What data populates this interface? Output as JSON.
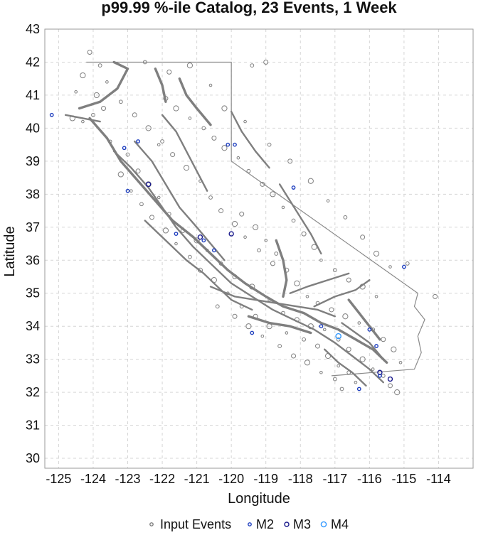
{
  "chart_data": {
    "type": "scatter",
    "title": "p99.99 %-ile Catalog, 23 Events, 1 Week",
    "xlabel": "Longitude",
    "ylabel": "Latitude",
    "xlim": [
      -125.4,
      -113.0
    ],
    "ylim": [
      29.7,
      43.0
    ],
    "x_ticks": [
      -125,
      -124,
      -123,
      -122,
      -121,
      -120,
      -119,
      -118,
      -117,
      -116,
      -115,
      -114
    ],
    "y_ticks": [
      30,
      31,
      32,
      33,
      34,
      35,
      36,
      37,
      38,
      39,
      40,
      41,
      42,
      43
    ],
    "grid": true,
    "legend_position": "bottom",
    "legend": [
      {
        "label": "Input Events",
        "color": "#7f7f7f"
      },
      {
        "label": "M2",
        "color": "#1f3fbf"
      },
      {
        "label": "M3",
        "color": "#1a1a8c"
      },
      {
        "label": "M4",
        "color": "#3399ff"
      }
    ],
    "boundary": [
      [
        -124.2,
        42.0
      ],
      [
        -120.0,
        42.0
      ],
      [
        -120.0,
        39.0
      ],
      [
        -114.6,
        35.0
      ],
      [
        -114.7,
        34.6
      ],
      [
        -114.4,
        34.2
      ],
      [
        -114.6,
        33.7
      ],
      [
        -114.5,
        33.2
      ],
      [
        -114.7,
        32.7
      ],
      [
        -117.1,
        32.5
      ]
    ],
    "faults": [
      [
        [
          -124.1,
          40.3
        ],
        [
          -123.6,
          39.7
        ],
        [
          -123.2,
          39.0
        ],
        [
          -122.7,
          38.4
        ],
        [
          -122.2,
          37.8
        ],
        [
          -121.7,
          37.2
        ],
        [
          -121.1,
          36.7
        ],
        [
          -120.6,
          36.2
        ],
        [
          -120.1,
          35.7
        ],
        [
          -119.6,
          35.3
        ],
        [
          -119.0,
          34.9
        ],
        [
          -118.5,
          34.6
        ],
        [
          -117.9,
          34.4
        ],
        [
          -117.4,
          34.1
        ],
        [
          -116.9,
          33.9
        ],
        [
          -116.4,
          33.6
        ],
        [
          -115.9,
          33.3
        ],
        [
          -115.5,
          32.9
        ]
      ],
      [
        [
          -123.4,
          39.3
        ],
        [
          -122.9,
          38.8
        ],
        [
          -122.4,
          38.2
        ],
        [
          -122.0,
          37.6
        ],
        [
          -121.6,
          37.0
        ],
        [
          -121.1,
          36.4
        ],
        [
          -120.5,
          35.8
        ],
        [
          -120.0,
          35.3
        ],
        [
          -119.4,
          34.9
        ],
        [
          -118.8,
          34.5
        ],
        [
          -118.2,
          34.2
        ],
        [
          -117.6,
          33.9
        ],
        [
          -117.0,
          33.5
        ],
        [
          -116.5,
          33.1
        ],
        [
          -116.0,
          32.7
        ],
        [
          -115.6,
          32.3
        ]
      ],
      [
        [
          -122.8,
          39.6
        ],
        [
          -122.3,
          39.0
        ],
        [
          -121.9,
          38.3
        ],
        [
          -121.5,
          37.6
        ],
        [
          -121.0,
          37.0
        ],
        [
          -120.6,
          36.5
        ],
        [
          -120.2,
          36.0
        ]
      ],
      [
        [
          -124.4,
          40.6
        ],
        [
          -123.8,
          40.8
        ],
        [
          -123.3,
          41.2
        ],
        [
          -123.0,
          41.8
        ],
        [
          -123.4,
          42.0
        ]
      ],
      [
        [
          -122.5,
          37.2
        ],
        [
          -122.1,
          36.8
        ],
        [
          -121.7,
          36.4
        ],
        [
          -121.3,
          36.0
        ],
        [
          -120.8,
          35.6
        ],
        [
          -120.4,
          35.2
        ],
        [
          -120.0,
          34.8
        ],
        [
          -119.4,
          34.5
        ]
      ],
      [
        [
          -120.6,
          35.2
        ],
        [
          -119.9,
          34.9
        ],
        [
          -119.3,
          34.8
        ],
        [
          -118.7,
          34.7
        ],
        [
          -118.1,
          34.6
        ],
        [
          -117.5,
          34.5
        ],
        [
          -117.0,
          34.3
        ]
      ],
      [
        [
          -118.7,
          36.6
        ],
        [
          -118.5,
          36.0
        ],
        [
          -118.4,
          35.4
        ],
        [
          -118.5,
          34.9
        ]
      ],
      [
        [
          -118.3,
          35.0
        ],
        [
          -117.8,
          35.2
        ],
        [
          -117.2,
          35.4
        ],
        [
          -116.6,
          35.6
        ]
      ],
      [
        [
          -117.6,
          34.6
        ],
        [
          -117.0,
          34.9
        ],
        [
          -116.4,
          35.1
        ],
        [
          -116.0,
          35.4
        ]
      ],
      [
        [
          -116.6,
          34.8
        ],
        [
          -116.3,
          34.4
        ],
        [
          -116.0,
          34.0
        ],
        [
          -115.7,
          33.6
        ]
      ],
      [
        [
          -118.6,
          38.3
        ],
        [
          -118.3,
          37.8
        ],
        [
          -118.0,
          37.3
        ],
        [
          -117.7,
          36.8
        ],
        [
          -117.4,
          36.2
        ]
      ],
      [
        [
          -120.0,
          40.5
        ],
        [
          -119.7,
          39.9
        ],
        [
          -119.3,
          39.3
        ],
        [
          -118.9,
          38.8
        ]
      ],
      [
        [
          -121.5,
          41.5
        ],
        [
          -121.3,
          41.0
        ],
        [
          -121.0,
          40.6
        ],
        [
          -120.6,
          40.1
        ]
      ],
      [
        [
          -122.0,
          40.4
        ],
        [
          -121.6,
          39.9
        ],
        [
          -121.3,
          39.3
        ],
        [
          -121.0,
          38.7
        ],
        [
          -120.7,
          38.1
        ]
      ],
      [
        [
          -117.3,
          33.3
        ],
        [
          -116.9,
          32.9
        ],
        [
          -116.5,
          32.6
        ],
        [
          -116.1,
          32.2
        ]
      ],
      [
        [
          -119.5,
          34.3
        ],
        [
          -118.9,
          34.1
        ],
        [
          -118.3,
          34.0
        ],
        [
          -117.7,
          33.8
        ]
      ],
      [
        [
          -116.8,
          34.1
        ],
        [
          -116.4,
          33.8
        ],
        [
          -116.0,
          33.5
        ],
        [
          -115.6,
          33.0
        ]
      ],
      [
        [
          -124.8,
          40.4
        ],
        [
          -124.3,
          40.3
        ],
        [
          -123.8,
          40.2
        ]
      ],
      [
        [
          -122.2,
          41.8
        ],
        [
          -122.0,
          41.3
        ],
        [
          -121.9,
          40.8
        ]
      ]
    ],
    "events": [
      [
        -124.3,
        40.2
      ],
      [
        -124.0,
        40.4
      ],
      [
        -123.7,
        40.6
      ],
      [
        -124.6,
        40.3
      ],
      [
        -123.5,
        39.6
      ],
      [
        -123.0,
        39.2
      ],
      [
        -122.7,
        38.7
      ],
      [
        -122.4,
        38.3
      ],
      [
        -122.1,
        37.9
      ],
      [
        -121.8,
        37.4
      ],
      [
        -121.4,
        36.9
      ],
      [
        -121.0,
        36.6
      ],
      [
        -120.7,
        36.3
      ],
      [
        -120.3,
        35.9
      ],
      [
        -119.9,
        35.5
      ],
      [
        -119.4,
        35.2
      ],
      [
        -118.9,
        34.8
      ],
      [
        -118.5,
        34.4
      ],
      [
        -118.1,
        34.2
      ],
      [
        -117.7,
        34.0
      ],
      [
        -117.3,
        33.9
      ],
      [
        -116.9,
        33.6
      ],
      [
        -116.6,
        33.3
      ],
      [
        -116.2,
        33.0
      ],
      [
        -115.9,
        32.7
      ],
      [
        -115.6,
        32.5
      ],
      [
        -115.4,
        32.2
      ],
      [
        -115.2,
        32.0
      ],
      [
        -116.4,
        32.3
      ],
      [
        -116.8,
        32.1
      ],
      [
        -121.9,
        40.9
      ],
      [
        -121.6,
        40.6
      ],
      [
        -121.2,
        40.3
      ],
      [
        -120.8,
        40.0
      ],
      [
        -120.5,
        39.7
      ],
      [
        -120.2,
        39.4
      ],
      [
        -119.8,
        39.1
      ],
      [
        -119.5,
        38.7
      ],
      [
        -119.1,
        38.3
      ],
      [
        -118.8,
        38.0
      ],
      [
        -118.5,
        37.6
      ],
      [
        -118.2,
        37.2
      ],
      [
        -117.9,
        36.8
      ],
      [
        -117.6,
        36.4
      ],
      [
        -117.4,
        36.0
      ],
      [
        -117.0,
        35.7
      ],
      [
        -116.6,
        35.4
      ],
      [
        -116.2,
        35.2
      ],
      [
        -115.8,
        34.9
      ],
      [
        -122.5,
        42.0
      ],
      [
        -121.8,
        41.7
      ],
      [
        -121.2,
        41.9
      ],
      [
        -120.6,
        41.3
      ],
      [
        -119.4,
        41.9
      ],
      [
        -119.0,
        42.0
      ],
      [
        -120.2,
        40.6
      ],
      [
        -119.6,
        40.2
      ],
      [
        -118.9,
        39.5
      ],
      [
        -118.3,
        39.0
      ],
      [
        -117.7,
        38.4
      ],
      [
        -117.2,
        37.8
      ],
      [
        -116.7,
        37.3
      ],
      [
        -116.2,
        36.7
      ],
      [
        -115.8,
        36.2
      ],
      [
        -115.4,
        35.8
      ],
      [
        -114.9,
        35.9
      ],
      [
        -114.1,
        34.9
      ],
      [
        -123.2,
        38.6
      ],
      [
        -122.9,
        38.1
      ],
      [
        -122.6,
        37.7
      ],
      [
        -122.3,
        37.3
      ],
      [
        -121.9,
        36.9
      ],
      [
        -121.6,
        36.5
      ],
      [
        -121.2,
        36.1
      ],
      [
        -120.9,
        35.7
      ],
      [
        -120.5,
        35.4
      ],
      [
        -120.1,
        35.0
      ],
      [
        -119.7,
        34.6
      ],
      [
        -119.3,
        34.3
      ],
      [
        -118.9,
        34.0
      ],
      [
        -118.4,
        33.8
      ],
      [
        -117.9,
        33.6
      ],
      [
        -117.5,
        33.4
      ],
      [
        -117.2,
        33.1
      ],
      [
        -116.9,
        32.8
      ],
      [
        -116.6,
        32.6
      ],
      [
        -119.7,
        37.4
      ],
      [
        -119.3,
        37.0
      ],
      [
        -119.0,
        36.6
      ],
      [
        -118.7,
        36.2
      ],
      [
        -118.4,
        35.7
      ],
      [
        -118.1,
        35.3
      ],
      [
        -117.8,
        34.9
      ],
      [
        -117.5,
        34.7
      ],
      [
        -117.1,
        34.5
      ],
      [
        -116.7,
        34.3
      ],
      [
        -116.3,
        34.1
      ],
      [
        -115.9,
        33.9
      ],
      [
        -115.6,
        33.6
      ],
      [
        -115.3,
        33.3
      ],
      [
        -115.1,
        32.9
      ],
      [
        -122.0,
        39.6
      ],
      [
        -121.7,
        39.2
      ],
      [
        -121.3,
        38.8
      ],
      [
        -120.9,
        38.4
      ],
      [
        -120.6,
        37.9
      ],
      [
        -120.3,
        37.5
      ],
      [
        -119.9,
        37.1
      ],
      [
        -119.6,
        36.7
      ],
      [
        -119.2,
        36.3
      ],
      [
        -118.8,
        35.9
      ],
      [
        -123.9,
        41.0
      ],
      [
        -123.6,
        41.4
      ],
      [
        -123.8,
        41.9
      ],
      [
        -124.1,
        42.3
      ],
      [
        -124.3,
        41.6
      ],
      [
        -124.5,
        41.1
      ],
      [
        -123.2,
        40.8
      ],
      [
        -122.8,
        40.4
      ],
      [
        -122.4,
        40.0
      ],
      [
        -122.1,
        39.5
      ],
      [
        -120.4,
        34.6
      ],
      [
        -119.9,
        34.3
      ],
      [
        -119.5,
        34.0
      ],
      [
        -119.1,
        33.7
      ],
      [
        -118.6,
        33.4
      ],
      [
        -118.2,
        33.1
      ],
      [
        -117.8,
        32.9
      ],
      [
        -117.4,
        32.6
      ],
      [
        -117.0,
        32.4
      ]
    ],
    "magnitude_events": [
      {
        "x": -125.2,
        "y": 40.4,
        "class": "M2"
      },
      {
        "x": -123.1,
        "y": 39.4,
        "class": "M2"
      },
      {
        "x": -122.4,
        "y": 38.3,
        "class": "M3"
      },
      {
        "x": -123.0,
        "y": 38.1,
        "class": "M2"
      },
      {
        "x": -121.6,
        "y": 36.8,
        "class": "M2"
      },
      {
        "x": -120.9,
        "y": 36.7,
        "class": "M3"
      },
      {
        "x": -120.8,
        "y": 36.6,
        "class": "M2"
      },
      {
        "x": -120.5,
        "y": 36.3,
        "class": "M2"
      },
      {
        "x": -120.0,
        "y": 36.8,
        "class": "M3"
      },
      {
        "x": -119.9,
        "y": 39.5,
        "class": "M2"
      },
      {
        "x": -120.1,
        "y": 39.5,
        "class": "M2"
      },
      {
        "x": -119.4,
        "y": 33.8,
        "class": "M2"
      },
      {
        "x": -116.9,
        "y": 33.7,
        "class": "M4"
      },
      {
        "x": -115.8,
        "y": 33.4,
        "class": "M2"
      },
      {
        "x": -116.3,
        "y": 32.1,
        "class": "M2"
      },
      {
        "x": -115.7,
        "y": 32.6,
        "class": "M3"
      },
      {
        "x": -115.7,
        "y": 32.5,
        "class": "M2"
      },
      {
        "x": -115.4,
        "y": 32.4,
        "class": "M3"
      },
      {
        "x": -115.0,
        "y": 35.8,
        "class": "M2"
      },
      {
        "x": -118.2,
        "y": 38.2,
        "class": "M2"
      },
      {
        "x": -122.7,
        "y": 39.6,
        "class": "M2"
      },
      {
        "x": -116.0,
        "y": 33.9,
        "class": "M2"
      },
      {
        "x": -117.4,
        "y": 34.0,
        "class": "M2"
      }
    ]
  }
}
